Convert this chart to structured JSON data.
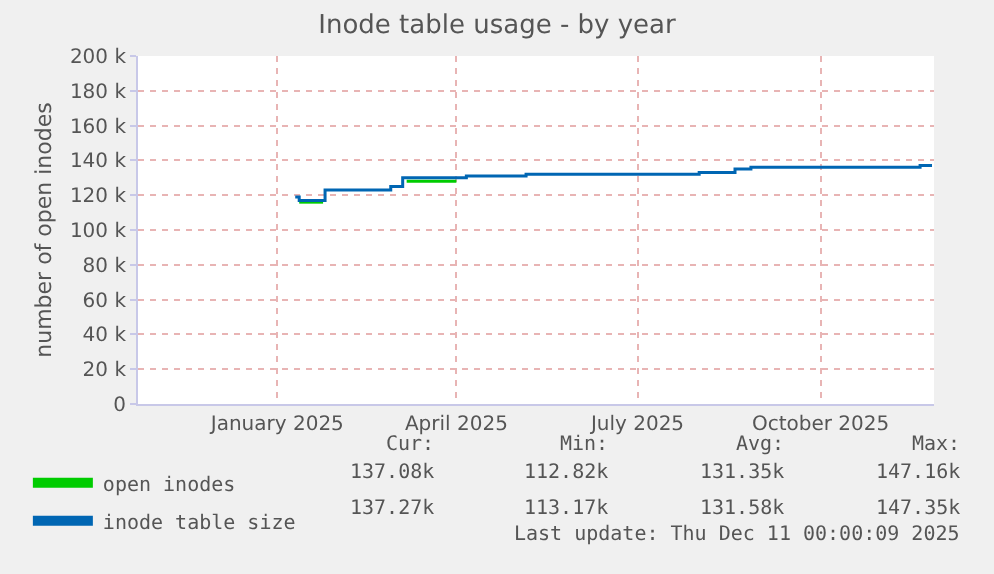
{
  "chart_data": {
    "type": "step",
    "title": "Inode table usage - by year",
    "ylabel": "number of open inodes",
    "x": [
      "2025-01-25",
      "2025-01-27",
      "2025-02-09",
      "2025-03-14",
      "2025-03-20",
      "2025-03-22",
      "2025-04-16",
      "2025-04-21",
      "2025-05-21",
      "2025-08-16",
      "2025-09-03",
      "2025-09-11",
      "2025-12-05",
      "2025-12-11"
    ],
    "series": [
      {
        "name": "open inodes",
        "color": "#00cc00",
        "x": [
          "2025-01-27",
          "2025-02-08",
          "2025-02-09",
          "2025-03-22",
          "2025-04-16"
        ],
        "values": [
          116000,
          116000,
          null,
          128000,
          128000
        ]
      },
      {
        "name": "inode table size",
        "color": "#0066b3",
        "values": [
          119000,
          117000,
          123000,
          125000,
          130000,
          130000,
          130000,
          131000,
          132000,
          133000,
          135000,
          136000,
          137000,
          137000
        ]
      }
    ],
    "xlim": [
      "2024-11-07",
      "2025-12-12"
    ],
    "xticks": [
      {
        "value": "2025-01-16",
        "label": "January 2025"
      },
      {
        "value": "2025-04-16",
        "label": "April 2025"
      },
      {
        "value": "2025-07-16",
        "label": "July 2025"
      },
      {
        "value": "2025-10-16",
        "label": "October 2025"
      }
    ],
    "ylim": [
      0,
      200000
    ],
    "yticks": [
      {
        "value": 0,
        "label": "0"
      },
      {
        "value": 20000,
        "label": "20 k"
      },
      {
        "value": 40000,
        "label": "40 k"
      },
      {
        "value": 60000,
        "label": "60 k"
      },
      {
        "value": 80000,
        "label": "80 k"
      },
      {
        "value": 100000,
        "label": "100 k"
      },
      {
        "value": 120000,
        "label": "120 k"
      },
      {
        "value": 140000,
        "label": "140 k"
      },
      {
        "value": 160000,
        "label": "160 k"
      },
      {
        "value": 180000,
        "label": "180 k"
      },
      {
        "value": 200000,
        "label": "200 k"
      }
    ],
    "grid": true,
    "legend": "bottom left",
    "marker": "none",
    "line_style": "solid",
    "annotations": [
      "Cur:",
      "Min:",
      "Avg:",
      "Max:",
      "137.08k",
      "112.82k",
      "131.35k",
      "147.16k",
      "137.27k",
      "113.17k",
      "131.58k",
      "147.35k",
      "Last update: Thu Dec 11 00:00:09 2025"
    ]
  }
}
